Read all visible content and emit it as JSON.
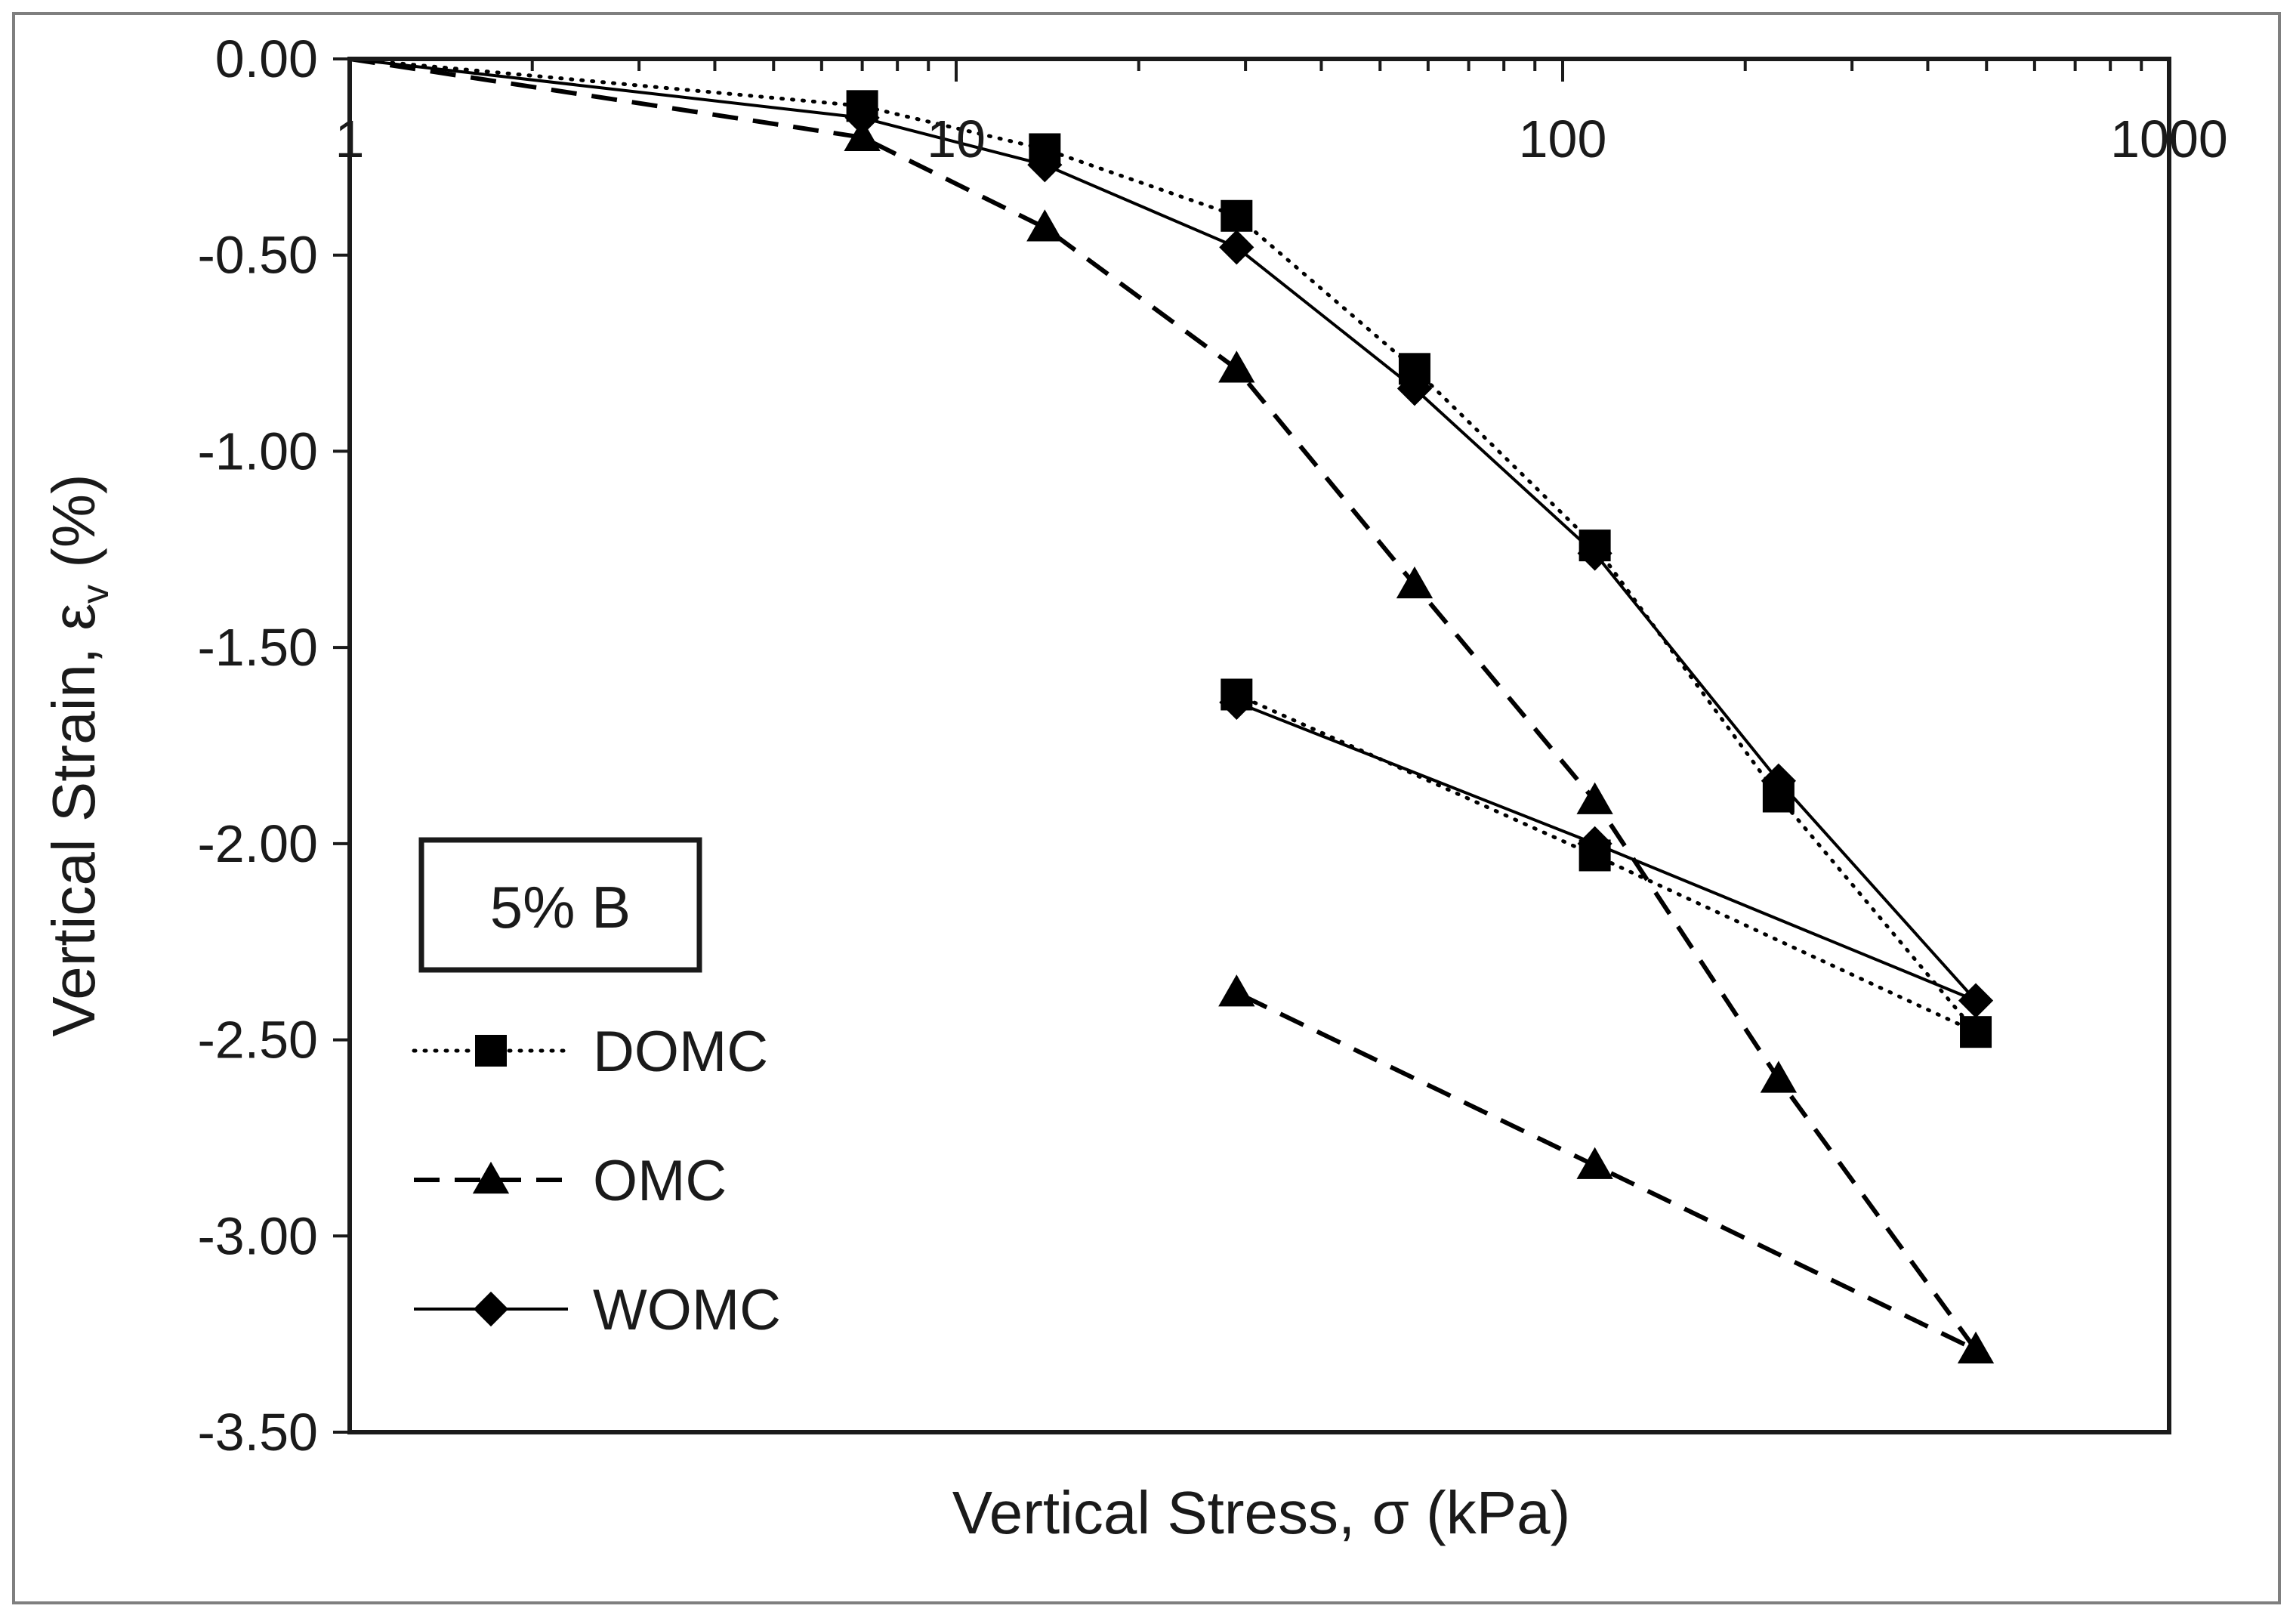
{
  "chart_data": {
    "type": "line",
    "title": "",
    "annotation": "5% B",
    "xlabel": "Vertical Stress, σ (kPa)",
    "ylabel_main": "Vertical Strain, ε",
    "ylabel_sub": "v",
    "ylabel_suffix": " (%)",
    "xscale": "log",
    "xlim": [
      1,
      1000
    ],
    "ylim": [
      -3.5,
      0.0
    ],
    "x_tick_values": [
      1,
      10,
      100,
      1000
    ],
    "x_tick_labels": [
      "1",
      "10",
      "100",
      "1000"
    ],
    "y_tick_values": [
      0,
      -0.5,
      -1.0,
      -1.5,
      -2.0,
      -2.5,
      -3.0,
      -3.5
    ],
    "y_tick_labels": [
      "0.00",
      "-0.50",
      "-1.00",
      "-1.50",
      "-2.00",
      "-2.50",
      "-3.00",
      "-3.50"
    ],
    "grid": false,
    "legend_position": "left",
    "series": [
      {
        "name": "DOMC",
        "line_style": "dotted",
        "marker": "square",
        "color": "#000000",
        "x": [
          1,
          7,
          14,
          29,
          57,
          113,
          227,
          480,
          113,
          29
        ],
        "y": [
          0.0,
          -0.12,
          -0.23,
          -0.4,
          -0.79,
          -1.24,
          -1.88,
          -2.48,
          -2.03,
          -1.62
        ]
      },
      {
        "name": "OMC",
        "line_style": "dashed",
        "marker": "triangle",
        "color": "#000000",
        "x": [
          1,
          7,
          14,
          29,
          57,
          113,
          227,
          480,
          113,
          29
        ],
        "y": [
          0.0,
          -0.2,
          -0.43,
          -0.79,
          -1.34,
          -1.89,
          -2.6,
          -3.29,
          -2.82,
          -2.38
        ]
      },
      {
        "name": "WOMC",
        "line_style": "solid",
        "marker": "diamond",
        "color": "#000000",
        "x": [
          1,
          7,
          14,
          29,
          57,
          113,
          227,
          480,
          113,
          29
        ],
        "y": [
          0.0,
          -0.15,
          -0.27,
          -0.48,
          -0.84,
          -1.26,
          -1.84,
          -2.4,
          -2.0,
          -1.64
        ]
      }
    ]
  }
}
